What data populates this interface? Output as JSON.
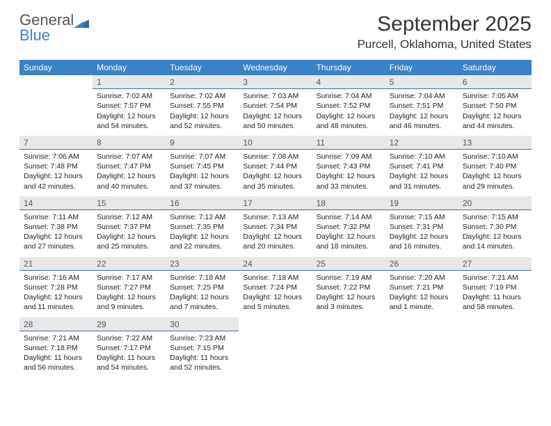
{
  "logo": {
    "word1": "General",
    "word2": "Blue"
  },
  "title": "September 2025",
  "location": "Purcell, Oklahoma, United States",
  "colors": {
    "header_bg": "#3b82c4",
    "daynum_bg": "#e8e8e8",
    "daynum_border": "#3b6ea0",
    "text": "#333333",
    "background": "#ffffff"
  },
  "weekdays": [
    "Sunday",
    "Monday",
    "Tuesday",
    "Wednesday",
    "Thursday",
    "Friday",
    "Saturday"
  ],
  "weeks": [
    [
      {
        "day": "",
        "sunrise": "",
        "sunset": "",
        "daylight1": "",
        "daylight2": ""
      },
      {
        "day": "1",
        "sunrise": "Sunrise: 7:02 AM",
        "sunset": "Sunset: 7:57 PM",
        "daylight1": "Daylight: 12 hours",
        "daylight2": "and 54 minutes."
      },
      {
        "day": "2",
        "sunrise": "Sunrise: 7:02 AM",
        "sunset": "Sunset: 7:55 PM",
        "daylight1": "Daylight: 12 hours",
        "daylight2": "and 52 minutes."
      },
      {
        "day": "3",
        "sunrise": "Sunrise: 7:03 AM",
        "sunset": "Sunset: 7:54 PM",
        "daylight1": "Daylight: 12 hours",
        "daylight2": "and 50 minutes."
      },
      {
        "day": "4",
        "sunrise": "Sunrise: 7:04 AM",
        "sunset": "Sunset: 7:52 PM",
        "daylight1": "Daylight: 12 hours",
        "daylight2": "and 48 minutes."
      },
      {
        "day": "5",
        "sunrise": "Sunrise: 7:04 AM",
        "sunset": "Sunset: 7:51 PM",
        "daylight1": "Daylight: 12 hours",
        "daylight2": "and 46 minutes."
      },
      {
        "day": "6",
        "sunrise": "Sunrise: 7:05 AM",
        "sunset": "Sunset: 7:50 PM",
        "daylight1": "Daylight: 12 hours",
        "daylight2": "and 44 minutes."
      }
    ],
    [
      {
        "day": "7",
        "sunrise": "Sunrise: 7:06 AM",
        "sunset": "Sunset: 7:48 PM",
        "daylight1": "Daylight: 12 hours",
        "daylight2": "and 42 minutes."
      },
      {
        "day": "8",
        "sunrise": "Sunrise: 7:07 AM",
        "sunset": "Sunset: 7:47 PM",
        "daylight1": "Daylight: 12 hours",
        "daylight2": "and 40 minutes."
      },
      {
        "day": "9",
        "sunrise": "Sunrise: 7:07 AM",
        "sunset": "Sunset: 7:45 PM",
        "daylight1": "Daylight: 12 hours",
        "daylight2": "and 37 minutes."
      },
      {
        "day": "10",
        "sunrise": "Sunrise: 7:08 AM",
        "sunset": "Sunset: 7:44 PM",
        "daylight1": "Daylight: 12 hours",
        "daylight2": "and 35 minutes."
      },
      {
        "day": "11",
        "sunrise": "Sunrise: 7:09 AM",
        "sunset": "Sunset: 7:43 PM",
        "daylight1": "Daylight: 12 hours",
        "daylight2": "and 33 minutes."
      },
      {
        "day": "12",
        "sunrise": "Sunrise: 7:10 AM",
        "sunset": "Sunset: 7:41 PM",
        "daylight1": "Daylight: 12 hours",
        "daylight2": "and 31 minutes."
      },
      {
        "day": "13",
        "sunrise": "Sunrise: 7:10 AM",
        "sunset": "Sunset: 7:40 PM",
        "daylight1": "Daylight: 12 hours",
        "daylight2": "and 29 minutes."
      }
    ],
    [
      {
        "day": "14",
        "sunrise": "Sunrise: 7:11 AM",
        "sunset": "Sunset: 7:38 PM",
        "daylight1": "Daylight: 12 hours",
        "daylight2": "and 27 minutes."
      },
      {
        "day": "15",
        "sunrise": "Sunrise: 7:12 AM",
        "sunset": "Sunset: 7:37 PM",
        "daylight1": "Daylight: 12 hours",
        "daylight2": "and 25 minutes."
      },
      {
        "day": "16",
        "sunrise": "Sunrise: 7:12 AM",
        "sunset": "Sunset: 7:35 PM",
        "daylight1": "Daylight: 12 hours",
        "daylight2": "and 22 minutes."
      },
      {
        "day": "17",
        "sunrise": "Sunrise: 7:13 AM",
        "sunset": "Sunset: 7:34 PM",
        "daylight1": "Daylight: 12 hours",
        "daylight2": "and 20 minutes."
      },
      {
        "day": "18",
        "sunrise": "Sunrise: 7:14 AM",
        "sunset": "Sunset: 7:32 PM",
        "daylight1": "Daylight: 12 hours",
        "daylight2": "and 18 minutes."
      },
      {
        "day": "19",
        "sunrise": "Sunrise: 7:15 AM",
        "sunset": "Sunset: 7:31 PM",
        "daylight1": "Daylight: 12 hours",
        "daylight2": "and 16 minutes."
      },
      {
        "day": "20",
        "sunrise": "Sunrise: 7:15 AM",
        "sunset": "Sunset: 7:30 PM",
        "daylight1": "Daylight: 12 hours",
        "daylight2": "and 14 minutes."
      }
    ],
    [
      {
        "day": "21",
        "sunrise": "Sunrise: 7:16 AM",
        "sunset": "Sunset: 7:28 PM",
        "daylight1": "Daylight: 12 hours",
        "daylight2": "and 11 minutes."
      },
      {
        "day": "22",
        "sunrise": "Sunrise: 7:17 AM",
        "sunset": "Sunset: 7:27 PM",
        "daylight1": "Daylight: 12 hours",
        "daylight2": "and 9 minutes."
      },
      {
        "day": "23",
        "sunrise": "Sunrise: 7:18 AM",
        "sunset": "Sunset: 7:25 PM",
        "daylight1": "Daylight: 12 hours",
        "daylight2": "and 7 minutes."
      },
      {
        "day": "24",
        "sunrise": "Sunrise: 7:18 AM",
        "sunset": "Sunset: 7:24 PM",
        "daylight1": "Daylight: 12 hours",
        "daylight2": "and 5 minutes."
      },
      {
        "day": "25",
        "sunrise": "Sunrise: 7:19 AM",
        "sunset": "Sunset: 7:22 PM",
        "daylight1": "Daylight: 12 hours",
        "daylight2": "and 3 minutes."
      },
      {
        "day": "26",
        "sunrise": "Sunrise: 7:20 AM",
        "sunset": "Sunset: 7:21 PM",
        "daylight1": "Daylight: 12 hours",
        "daylight2": "and 1 minute."
      },
      {
        "day": "27",
        "sunrise": "Sunrise: 7:21 AM",
        "sunset": "Sunset: 7:19 PM",
        "daylight1": "Daylight: 11 hours",
        "daylight2": "and 58 minutes."
      }
    ],
    [
      {
        "day": "28",
        "sunrise": "Sunrise: 7:21 AM",
        "sunset": "Sunset: 7:18 PM",
        "daylight1": "Daylight: 11 hours",
        "daylight2": "and 56 minutes."
      },
      {
        "day": "29",
        "sunrise": "Sunrise: 7:22 AM",
        "sunset": "Sunset: 7:17 PM",
        "daylight1": "Daylight: 11 hours",
        "daylight2": "and 54 minutes."
      },
      {
        "day": "30",
        "sunrise": "Sunrise: 7:23 AM",
        "sunset": "Sunset: 7:15 PM",
        "daylight1": "Daylight: 11 hours",
        "daylight2": "and 52 minutes."
      },
      {
        "day": "",
        "sunrise": "",
        "sunset": "",
        "daylight1": "",
        "daylight2": ""
      },
      {
        "day": "",
        "sunrise": "",
        "sunset": "",
        "daylight1": "",
        "daylight2": ""
      },
      {
        "day": "",
        "sunrise": "",
        "sunset": "",
        "daylight1": "",
        "daylight2": ""
      },
      {
        "day": "",
        "sunrise": "",
        "sunset": "",
        "daylight1": "",
        "daylight2": ""
      }
    ]
  ]
}
